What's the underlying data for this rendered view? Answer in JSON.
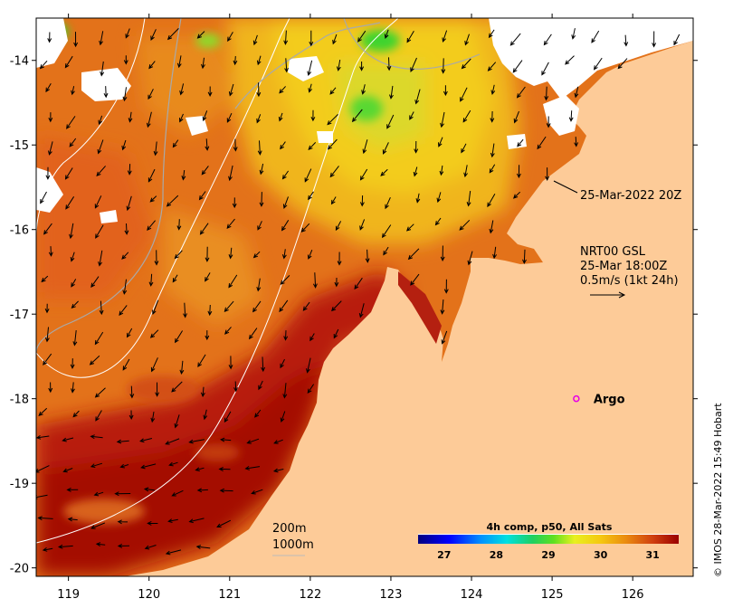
{
  "map": {
    "lon_ticks": [
      "119",
      "120",
      "121",
      "122",
      "123",
      "124",
      "125",
      "126"
    ],
    "lat_ticks": [
      "-14",
      "-15",
      "-16",
      "-17",
      "-18",
      "-19",
      "-20"
    ],
    "lon_range": [
      118.6,
      126.75
    ],
    "lat_range": [
      -20.1,
      -13.5
    ]
  },
  "annotations": {
    "sst_time": "25-Mar-2022 20Z",
    "current_product": "NRT00 GSL",
    "current_time": "25-Mar 18:00Z",
    "current_scale": "0.5m/s (1kt 24h)",
    "argo_label": "Argo",
    "contour_200": "200m",
    "contour_1000": "1000m",
    "credit": "© IMOS 28-Mar-2022 15:49 Hobart"
  },
  "argo": {
    "lon": 125.3,
    "lat": -18.0
  },
  "colorbar": {
    "title": "4h comp, p50, All Sats",
    "ticks": [
      "27",
      "28",
      "29",
      "30",
      "31"
    ],
    "range": [
      26.5,
      31.5
    ],
    "units_hint": "degC"
  },
  "colors": {
    "land": "#fdcb98",
    "cloud": "#ffffff",
    "warm": "#a60f00",
    "mid": "#e5751a",
    "cool": "#f2c81a",
    "cold": "#3ddb2f",
    "arrow": "#000000",
    "argo": "#e600e6"
  }
}
